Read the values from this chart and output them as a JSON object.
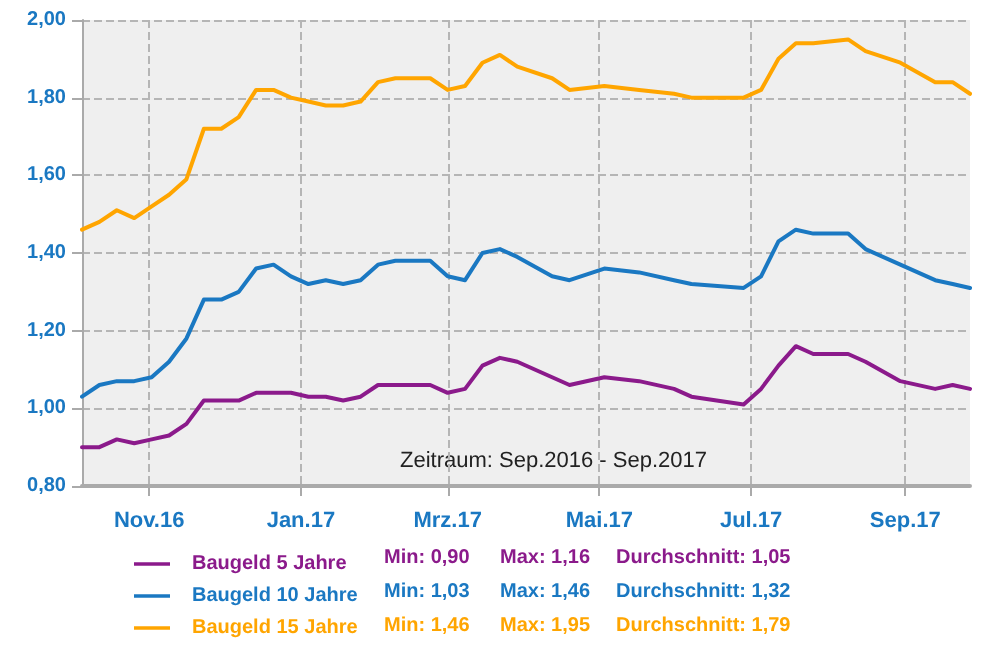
{
  "chart_data": {
    "type": "line",
    "x": [
      "2016-10-05",
      "2016-10-12",
      "2016-10-19",
      "2016-10-26",
      "2016-11-02",
      "2016-11-09",
      "2016-11-16",
      "2016-11-23",
      "2016-11-30",
      "2016-12-07",
      "2016-12-14",
      "2016-12-21",
      "2016-12-28",
      "2017-01-04",
      "2017-01-11",
      "2017-01-18",
      "2017-01-25",
      "2017-02-01",
      "2017-02-08",
      "2017-02-22",
      "2017-03-01",
      "2017-03-08",
      "2017-03-15",
      "2017-03-22",
      "2017-03-29",
      "2017-04-12",
      "2017-04-19",
      "2017-05-03",
      "2017-05-17",
      "2017-05-31",
      "2017-06-07",
      "2017-06-28",
      "2017-07-05",
      "2017-07-12",
      "2017-07-19",
      "2017-07-26",
      "2017-08-09",
      "2017-08-16",
      "2017-08-30",
      "2017-09-13",
      "2017-09-20",
      "2017-09-27"
    ],
    "series": [
      {
        "name": "Baugeld 5 Jahre",
        "color": "#8b1a8b",
        "values": [
          0.9,
          0.9,
          0.92,
          0.91,
          0.92,
          0.93,
          0.96,
          1.02,
          1.02,
          1.02,
          1.04,
          1.04,
          1.04,
          1.03,
          1.03,
          1.02,
          1.03,
          1.06,
          1.06,
          1.06,
          1.04,
          1.05,
          1.11,
          1.13,
          1.12,
          1.08,
          1.06,
          1.08,
          1.07,
          1.05,
          1.03,
          1.01,
          1.05,
          1.11,
          1.16,
          1.14,
          1.14,
          1.12,
          1.07,
          1.05,
          1.06,
          1.05
        ]
      },
      {
        "name": "Baugeld 10 Jahre",
        "color": "#1a78c2",
        "values": [
          1.03,
          1.06,
          1.07,
          1.07,
          1.08,
          1.12,
          1.18,
          1.28,
          1.28,
          1.3,
          1.36,
          1.37,
          1.34,
          1.32,
          1.33,
          1.32,
          1.33,
          1.37,
          1.38,
          1.38,
          1.34,
          1.33,
          1.4,
          1.41,
          1.39,
          1.34,
          1.33,
          1.36,
          1.35,
          1.33,
          1.32,
          1.31,
          1.34,
          1.43,
          1.46,
          1.45,
          1.45,
          1.41,
          1.37,
          1.33,
          1.32,
          1.31
        ]
      },
      {
        "name": "Baugeld 15 Jahre",
        "color": "#ffa500",
        "values": [
          1.46,
          1.48,
          1.51,
          1.49,
          1.52,
          1.55,
          1.59,
          1.72,
          1.72,
          1.75,
          1.82,
          1.82,
          1.8,
          1.79,
          1.78,
          1.78,
          1.79,
          1.84,
          1.85,
          1.85,
          1.82,
          1.83,
          1.89,
          1.91,
          1.88,
          1.85,
          1.82,
          1.83,
          1.82,
          1.81,
          1.8,
          1.8,
          1.82,
          1.9,
          1.94,
          1.94,
          1.95,
          1.92,
          1.89,
          1.84,
          1.84,
          1.81
        ]
      }
    ],
    "xlim": [
      "2016-10-05",
      "2017-09-27"
    ],
    "xticks": [
      {
        "value": "2016-11-01",
        "label": "Nov.16"
      },
      {
        "value": "2017-01-01",
        "label": "Jan.17"
      },
      {
        "value": "2017-03-01",
        "label": "Mrz.17"
      },
      {
        "value": "2017-05-01",
        "label": "Mai.17"
      },
      {
        "value": "2017-07-01",
        "label": "Jul.17"
      },
      {
        "value": "2017-09-01",
        "label": "Sep.17"
      }
    ],
    "ylim": [
      0.8,
      2.0
    ],
    "yticks": [
      {
        "value": 0.8,
        "label": "0,80"
      },
      {
        "value": 1.0,
        "label": "1,00"
      },
      {
        "value": 1.2,
        "label": "1,20"
      },
      {
        "value": 1.4,
        "label": "1,40"
      },
      {
        "value": 1.6,
        "label": "1,60"
      },
      {
        "value": 1.8,
        "label": "1,80"
      },
      {
        "value": 2.0,
        "label": "2,00"
      }
    ],
    "grid": true,
    "legend": "bottom",
    "marker": "none",
    "line_style": "solid",
    "annotations": [
      "Zeitraum: Sep.2016 - Sep.2017",
      "Min: 0,90",
      "Max: 1,16",
      "Durchschnitt: 1,05",
      "Min: 1,03",
      "Max: 1,46",
      "Durchschnitt: 1,32",
      "Min: 1,46",
      "Max: 1,95",
      "Durchschnitt: 1,79"
    ]
  }
}
